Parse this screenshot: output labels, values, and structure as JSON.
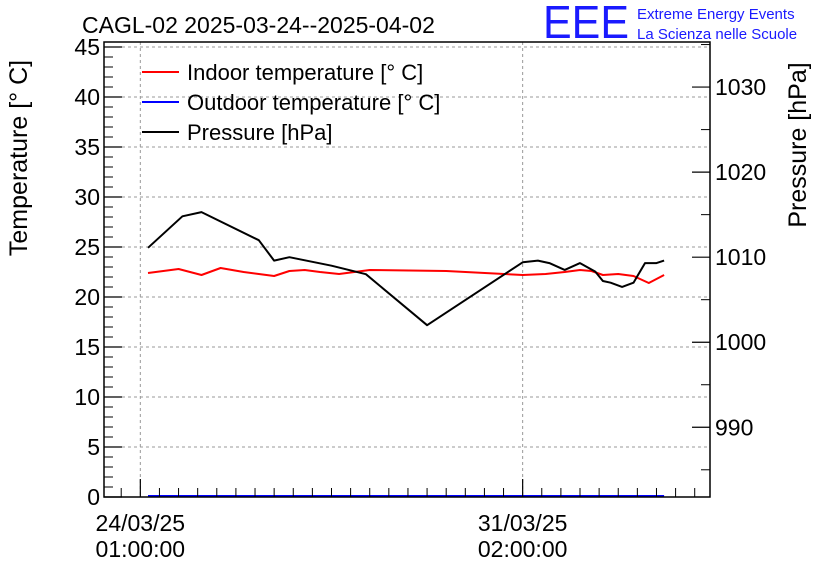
{
  "chart_data": {
    "type": "line",
    "title": "CAGL-02 2025-03-24--2025-04-02",
    "ylabel_left": "Temperature [° C]",
    "ylabel_right": "Pressure [hPa]",
    "xlabel": "",
    "ylim_left": [
      0,
      45.5
    ],
    "ylim_right": [
      981.8,
      1035.3
    ],
    "xlim_days": [
      -0.95,
      14.9
    ],
    "y_ticks_left": [
      0,
      5,
      10,
      15,
      20,
      25,
      30,
      35,
      40,
      45
    ],
    "y_ticks_right": [
      990,
      1000,
      1010,
      1020,
      1030
    ],
    "x_ticks": [
      {
        "x": 0,
        "label_line1": "24/03/25",
        "label_line2": "01:00:00"
      },
      {
        "x": 10,
        "label_line1": "31/03/25",
        "label_line2": "02:00:00"
      }
    ],
    "grid": true,
    "legend_position": "top-left",
    "series": [
      {
        "name": "Indoor temperature [° C]",
        "axis": "left",
        "color": "#ff0000",
        "x": [
          0.2,
          1.0,
          1.6,
          2.1,
          2.7,
          3.1,
          3.5,
          3.9,
          4.3,
          4.7,
          5.2,
          6.0,
          8.0,
          10.0,
          10.6,
          11.1,
          11.5,
          11.8,
          12.1,
          12.5,
          12.9,
          13.3,
          13.7
        ],
        "values": [
          22.4,
          22.8,
          22.2,
          22.9,
          22.5,
          22.3,
          22.1,
          22.6,
          22.7,
          22.5,
          22.3,
          22.7,
          22.6,
          22.2,
          22.3,
          22.5,
          22.7,
          22.6,
          22.2,
          22.3,
          22.1,
          21.4,
          22.2
        ]
      },
      {
        "name": "Outdoor temperature [° C]",
        "axis": "left",
        "color": "#0000ff",
        "x": [
          0.2,
          13.7
        ],
        "values": [
          0.1,
          0.1
        ]
      },
      {
        "name": "Pressure [hPa]",
        "axis": "right",
        "color": "#000000",
        "x": [
          0.2,
          1.1,
          1.6,
          3.1,
          3.5,
          3.9,
          5.0,
          5.9,
          7.5,
          10.0,
          10.4,
          10.7,
          11.1,
          11.5,
          11.9,
          12.1,
          12.3,
          12.6,
          12.9,
          13.2,
          13.5,
          13.7
        ],
        "values": [
          1011.1,
          1014.8,
          1015.3,
          1012.0,
          1009.6,
          1010.0,
          1009.0,
          1008.0,
          1002.0,
          1009.4,
          1009.6,
          1009.3,
          1008.5,
          1009.3,
          1008.3,
          1007.2,
          1007.0,
          1006.5,
          1007.0,
          1009.3,
          1009.3,
          1009.6
        ]
      }
    ]
  },
  "logo": {
    "mark": "EEE",
    "line1": "Extreme Energy Events",
    "line2": "La Scienza nelle Scuole",
    "color": "#1a1aff"
  }
}
